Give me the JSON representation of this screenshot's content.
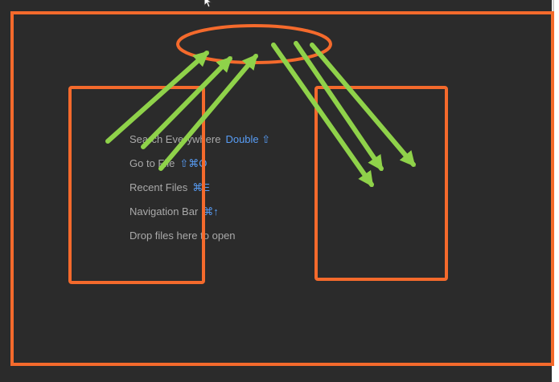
{
  "empty_editor": {
    "hints": [
      {
        "label": "Search Everywhere",
        "shortcut": "Double ⇧"
      },
      {
        "label": "Go to File",
        "shortcut": "⇧⌘O"
      },
      {
        "label": "Recent Files",
        "shortcut": "⌘E"
      },
      {
        "label": "Navigation Bar",
        "shortcut": "⌘↑"
      },
      {
        "label": "Drop files here to open",
        "shortcut": ""
      }
    ]
  },
  "colors": {
    "editor_background": "#2b2b2b",
    "hint_text": "#a9a9a9",
    "shortcut_accent": "#589df6",
    "annotation_orange": "#f46a2c",
    "annotation_green": "#8fd24a"
  },
  "icons": {
    "cursor": "mouse-pointer-icon"
  }
}
